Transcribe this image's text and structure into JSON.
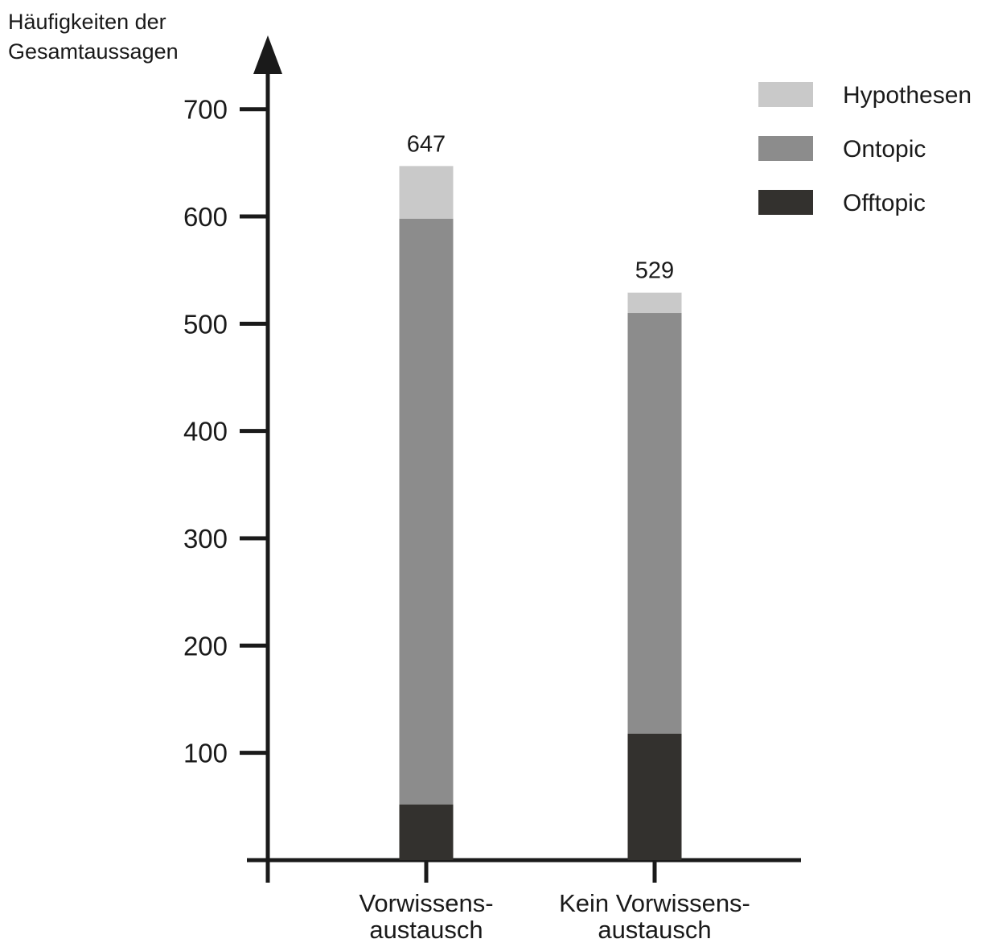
{
  "chart_data": {
    "type": "bar",
    "stacked": true,
    "ylabel_lines": [
      "Häufigkeiten der",
      "Gesamtaussagen"
    ],
    "categories": [
      {
        "lines": [
          "Vorwissens-",
          "austausch"
        ]
      },
      {
        "lines": [
          "Kein Vorwissens-",
          "austausch"
        ]
      }
    ],
    "series": [
      {
        "name": "Offtopic",
        "values": [
          52,
          118
        ],
        "color": "#33312e"
      },
      {
        "name": "Ontopic",
        "values": [
          546,
          392
        ],
        "color": "#8c8c8c"
      },
      {
        "name": "Hypothesen",
        "values": [
          49,
          19
        ],
        "color": "#c9c9c9"
      }
    ],
    "legend_order": [
      "Hypothesen",
      "Ontopic",
      "Offtopic"
    ],
    "totals": [
      "647",
      "529"
    ],
    "y_ticks": [
      100,
      200,
      300,
      400,
      500,
      600,
      700
    ],
    "ylim": [
      0,
      760
    ],
    "legend_position": "top-right",
    "grid": false
  }
}
